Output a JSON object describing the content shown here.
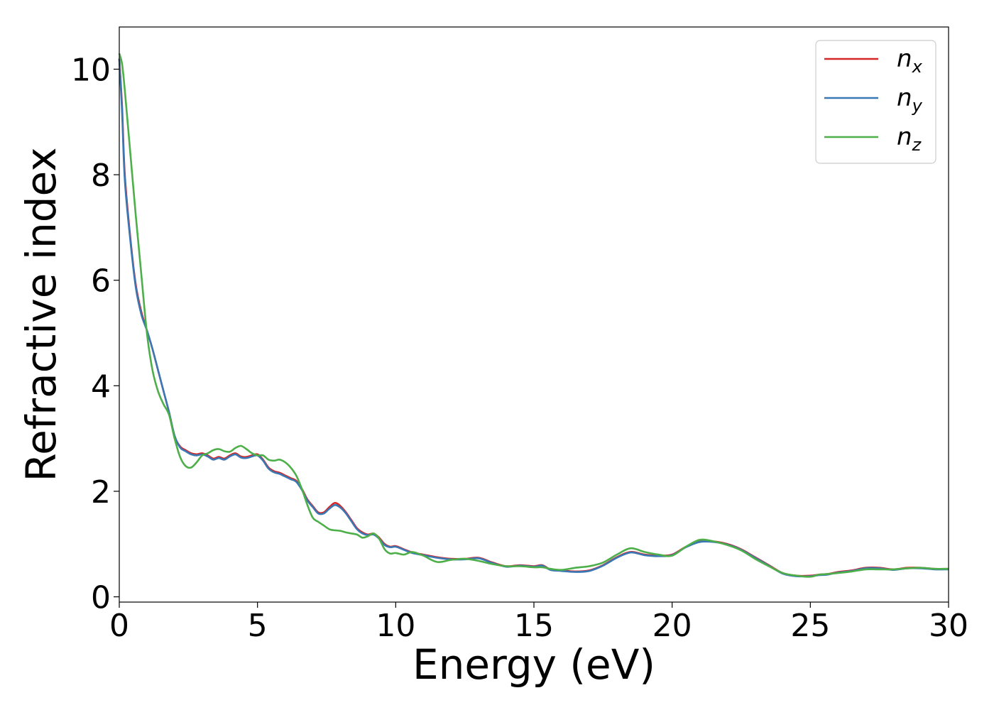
{
  "chart_data": {
    "type": "line",
    "xlabel": "Energy (eV)",
    "ylabel": "Refractive index",
    "xlim": [
      0,
      30
    ],
    "ylim": [
      -0.1,
      10.8
    ],
    "xticks": [
      0,
      5,
      10,
      15,
      20,
      25,
      30
    ],
    "yticks": [
      0,
      2,
      4,
      6,
      8,
      10
    ],
    "grid": false,
    "legend_position": "top-right",
    "series": [
      {
        "name": "n",
        "subscript": "x",
        "color": "#d62728",
        "x": [
          0,
          0.1,
          0.2,
          0.4,
          0.6,
          0.8,
          1.0,
          1.2,
          1.4,
          1.6,
          1.8,
          2.0,
          2.2,
          2.4,
          2.6,
          2.8,
          3.0,
          3.2,
          3.4,
          3.6,
          3.8,
          4.0,
          4.2,
          4.4,
          4.6,
          4.8,
          5.0,
          5.2,
          5.4,
          5.6,
          5.8,
          6.0,
          6.2,
          6.4,
          6.6,
          6.8,
          7.0,
          7.2,
          7.4,
          7.6,
          7.8,
          8.0,
          8.2,
          8.4,
          8.6,
          8.8,
          9.0,
          9.2,
          9.4,
          9.6,
          9.8,
          10.0,
          10.3,
          10.6,
          11.0,
          11.5,
          12.0,
          12.5,
          13.0,
          13.5,
          14.0,
          14.5,
          15.0,
          15.3,
          15.6,
          16.0,
          16.5,
          17.0,
          17.5,
          18.0,
          18.5,
          19.0,
          19.5,
          20.0,
          20.5,
          21.0,
          21.5,
          22.0,
          22.5,
          23.0,
          23.5,
          24.0,
          24.5,
          25.0,
          25.3,
          25.6,
          26.0,
          26.5,
          27.0,
          27.5,
          28.0,
          28.5,
          29.0,
          29.5,
          30.0
        ],
        "values": [
          10.2,
          9.3,
          8.0,
          6.8,
          5.9,
          5.4,
          5.05,
          4.7,
          4.3,
          3.9,
          3.5,
          3.05,
          2.85,
          2.78,
          2.72,
          2.7,
          2.72,
          2.68,
          2.62,
          2.65,
          2.62,
          2.68,
          2.72,
          2.66,
          2.65,
          2.68,
          2.7,
          2.6,
          2.45,
          2.38,
          2.35,
          2.3,
          2.25,
          2.2,
          2.05,
          1.85,
          1.72,
          1.6,
          1.6,
          1.7,
          1.78,
          1.72,
          1.6,
          1.45,
          1.3,
          1.22,
          1.18,
          1.2,
          1.12,
          1.0,
          0.95,
          0.96,
          0.9,
          0.84,
          0.8,
          0.75,
          0.72,
          0.72,
          0.74,
          0.65,
          0.58,
          0.6,
          0.58,
          0.6,
          0.52,
          0.5,
          0.48,
          0.5,
          0.6,
          0.75,
          0.85,
          0.8,
          0.78,
          0.8,
          0.95,
          1.05,
          1.05,
          1.0,
          0.9,
          0.75,
          0.6,
          0.45,
          0.4,
          0.4,
          0.42,
          0.43,
          0.47,
          0.5,
          0.55,
          0.55,
          0.52,
          0.55,
          0.55,
          0.53,
          0.53
        ]
      },
      {
        "name": "n",
        "subscript": "y",
        "color": "#3a78b5",
        "x": [
          0,
          0.1,
          0.2,
          0.4,
          0.6,
          0.8,
          1.0,
          1.2,
          1.4,
          1.6,
          1.8,
          2.0,
          2.2,
          2.4,
          2.6,
          2.8,
          3.0,
          3.2,
          3.4,
          3.6,
          3.8,
          4.0,
          4.2,
          4.4,
          4.6,
          4.8,
          5.0,
          5.2,
          5.4,
          5.6,
          5.8,
          6.0,
          6.2,
          6.4,
          6.6,
          6.8,
          7.0,
          7.2,
          7.4,
          7.6,
          7.8,
          8.0,
          8.2,
          8.4,
          8.6,
          8.8,
          9.0,
          9.2,
          9.4,
          9.6,
          9.8,
          10.0,
          10.3,
          10.6,
          11.0,
          11.5,
          12.0,
          12.5,
          13.0,
          13.5,
          14.0,
          14.5,
          15.0,
          15.3,
          15.6,
          16.0,
          16.5,
          17.0,
          17.5,
          18.0,
          18.5,
          19.0,
          19.5,
          20.0,
          20.5,
          21.0,
          21.5,
          22.0,
          22.5,
          23.0,
          23.5,
          24.0,
          24.5,
          25.0,
          25.3,
          25.6,
          26.0,
          26.5,
          27.0,
          27.5,
          28.0,
          28.5,
          29.0,
          29.5,
          30.0
        ],
        "values": [
          10.2,
          9.2,
          7.9,
          6.75,
          5.85,
          5.35,
          5.05,
          4.7,
          4.3,
          3.9,
          3.5,
          3.05,
          2.83,
          2.76,
          2.7,
          2.68,
          2.7,
          2.66,
          2.6,
          2.63,
          2.6,
          2.66,
          2.7,
          2.64,
          2.63,
          2.66,
          2.68,
          2.58,
          2.43,
          2.36,
          2.33,
          2.28,
          2.23,
          2.18,
          2.03,
          1.83,
          1.7,
          1.58,
          1.58,
          1.67,
          1.74,
          1.69,
          1.58,
          1.43,
          1.28,
          1.2,
          1.17,
          1.18,
          1.1,
          0.98,
          0.94,
          0.95,
          0.89,
          0.83,
          0.79,
          0.74,
          0.71,
          0.71,
          0.73,
          0.64,
          0.57,
          0.59,
          0.57,
          0.59,
          0.51,
          0.49,
          0.47,
          0.49,
          0.59,
          0.74,
          0.84,
          0.79,
          0.77,
          0.79,
          0.94,
          1.04,
          1.04,
          0.99,
          0.89,
          0.74,
          0.59,
          0.44,
          0.39,
          0.39,
          0.41,
          0.42,
          0.46,
          0.49,
          0.54,
          0.54,
          0.51,
          0.54,
          0.54,
          0.52,
          0.52
        ]
      },
      {
        "name": "n",
        "subscript": "z",
        "color": "#4daf4a",
        "x": [
          0,
          0.1,
          0.2,
          0.4,
          0.6,
          0.8,
          1.0,
          1.2,
          1.4,
          1.6,
          1.8,
          2.0,
          2.2,
          2.4,
          2.6,
          2.8,
          3.0,
          3.2,
          3.4,
          3.6,
          3.8,
          4.0,
          4.2,
          4.4,
          4.6,
          4.8,
          5.0,
          5.2,
          5.4,
          5.6,
          5.8,
          6.0,
          6.2,
          6.4,
          6.6,
          6.8,
          7.0,
          7.2,
          7.4,
          7.6,
          7.8,
          8.0,
          8.2,
          8.4,
          8.6,
          8.8,
          9.0,
          9.2,
          9.4,
          9.6,
          9.8,
          10.0,
          10.3,
          10.6,
          11.0,
          11.5,
          12.0,
          12.5,
          13.0,
          13.5,
          14.0,
          14.5,
          15.0,
          15.3,
          15.6,
          16.0,
          16.5,
          17.0,
          17.5,
          18.0,
          18.5,
          19.0,
          19.5,
          20.0,
          20.5,
          21.0,
          21.5,
          22.0,
          22.5,
          23.0,
          23.5,
          24.0,
          24.5,
          25.0,
          25.3,
          25.6,
          26.0,
          26.5,
          27.0,
          27.5,
          28.0,
          28.5,
          29.0,
          29.5,
          30.0
        ],
        "values": [
          10.3,
          10.1,
          9.6,
          8.4,
          7.2,
          6.1,
          5.0,
          4.3,
          3.9,
          3.65,
          3.45,
          3.0,
          2.65,
          2.48,
          2.45,
          2.55,
          2.68,
          2.72,
          2.78,
          2.8,
          2.76,
          2.75,
          2.82,
          2.86,
          2.8,
          2.72,
          2.68,
          2.68,
          2.6,
          2.58,
          2.6,
          2.55,
          2.45,
          2.3,
          2.05,
          1.75,
          1.5,
          1.42,
          1.35,
          1.28,
          1.26,
          1.25,
          1.22,
          1.2,
          1.18,
          1.12,
          1.15,
          1.2,
          1.1,
          0.9,
          0.82,
          0.83,
          0.8,
          0.85,
          0.78,
          0.66,
          0.7,
          0.72,
          0.68,
          0.62,
          0.58,
          0.58,
          0.56,
          0.56,
          0.53,
          0.51,
          0.55,
          0.58,
          0.65,
          0.8,
          0.92,
          0.85,
          0.8,
          0.78,
          0.95,
          1.08,
          1.05,
          0.98,
          0.88,
          0.72,
          0.58,
          0.45,
          0.4,
          0.38,
          0.42,
          0.43,
          0.45,
          0.48,
          0.52,
          0.52,
          0.52,
          0.54,
          0.55,
          0.53,
          0.53
        ]
      }
    ]
  }
}
